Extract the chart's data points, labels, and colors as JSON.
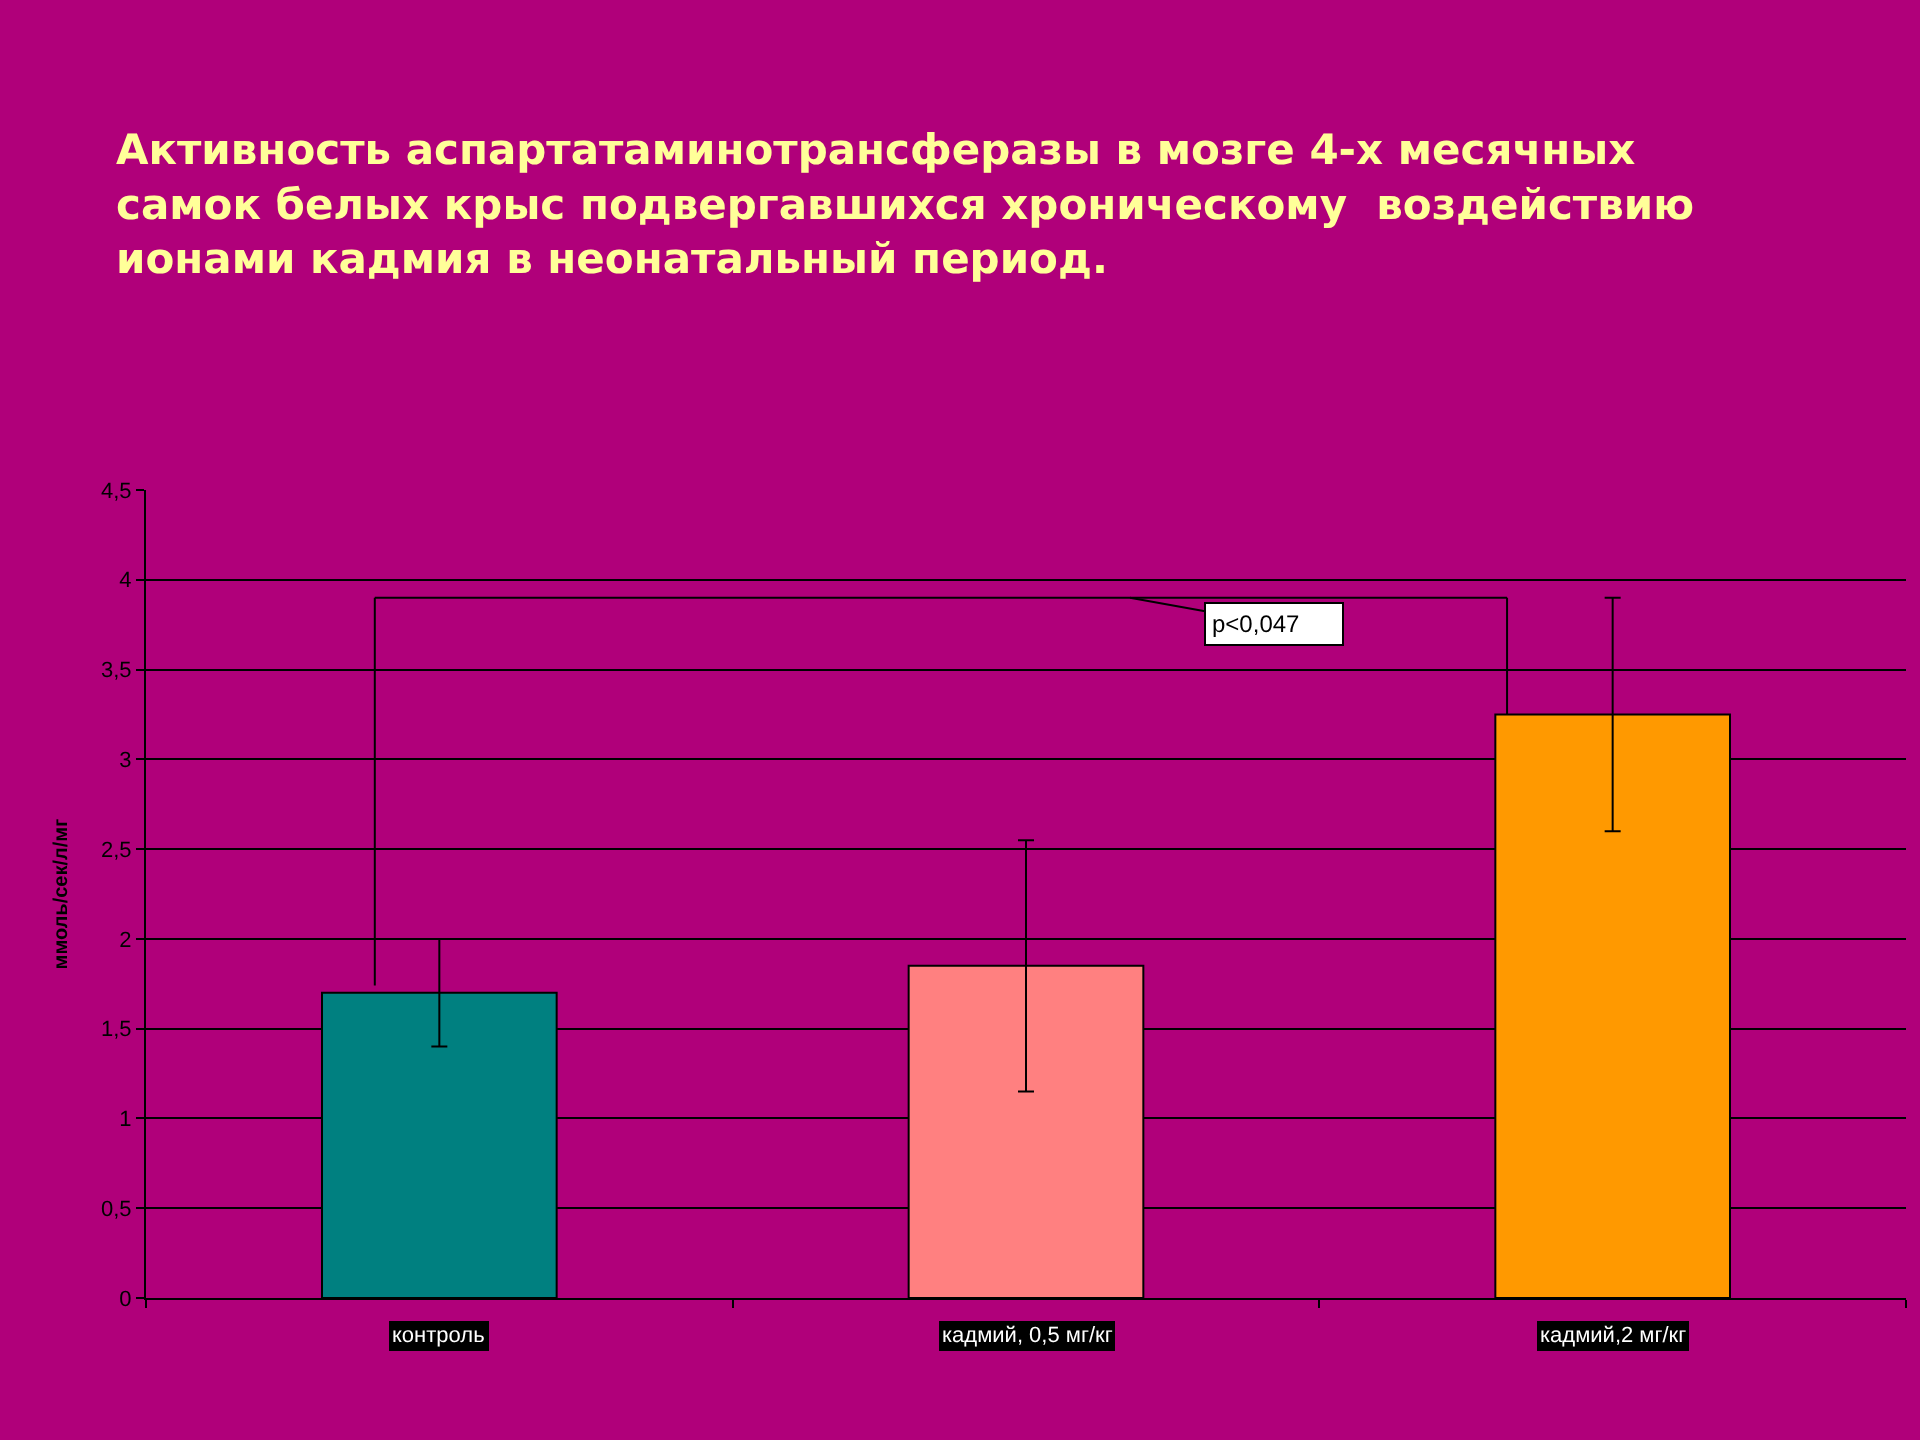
{
  "chart_data": {
    "type": "bar",
    "title": "Активность аспартатаминотрансферазы в мозге 4-х месячных самок белых крыс подвергавшихся хроническому  воздействию ионами кадмия в неонатальный период.",
    "ylabel": "ммоль/сек/л/мг",
    "categories": [
      "контроль",
      "кадмий, 0,5 мг/кг",
      "кадмий,2 мг/кг"
    ],
    "values": [
      1.7,
      1.85,
      3.25
    ],
    "colors": [
      "#008080",
      "#ff8080",
      "#ff9900"
    ],
    "errors": [
      0.3,
      0.7,
      0.65
    ],
    "ylim": [
      0,
      4.5
    ],
    "yticks": [
      0,
      {
        "value": 0.5,
        "label": "0,5"
      },
      1,
      {
        "value": 1.5,
        "label": "1,5"
      },
      2,
      {
        "value": 2.5,
        "label": "2,5"
      },
      3,
      {
        "value": 3.5,
        "label": "3,5"
      },
      4,
      {
        "value": 4.5,
        "label": "4,5"
      }
    ],
    "grid": "y",
    "ref_lines": [
      {
        "axis": "y",
        "value": 3.9,
        "label": "p<0,047",
        "color": "#000000"
      }
    ]
  }
}
